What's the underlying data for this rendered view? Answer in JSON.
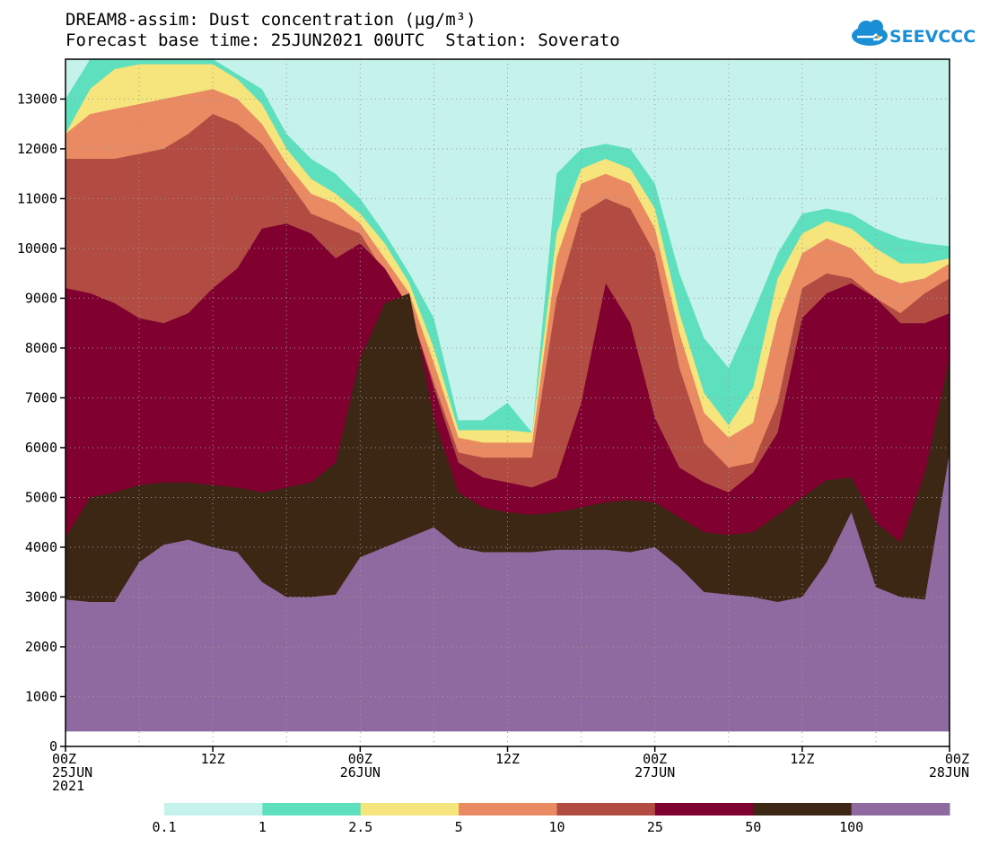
{
  "header": {
    "title": "DREAM8-assim: Dust concentration (µg/m³)",
    "subtitle": "Forecast base time: 25JUN2021 00UTC  Station: Soverato",
    "logo_text": "SEEVCCC"
  },
  "chart_data": {
    "type": "area",
    "title": "DREAM8-assim: Dust concentration (µg/m³)",
    "subtitle": "Forecast base time: 25JUN2021 00UTC  Station: Soverato",
    "x_unit": "hours from 2021-06-25 00UTC",
    "xlim": [
      0,
      72
    ],
    "ylim": [
      0,
      13800
    ],
    "grid": true,
    "y_ticks": [
      0,
      1000,
      2000,
      3000,
      4000,
      5000,
      6000,
      7000,
      8000,
      9000,
      10000,
      11000,
      12000,
      13000
    ],
    "x_ticks": [
      {
        "x": 0,
        "lines": [
          "00Z",
          "25JUN",
          "2021"
        ]
      },
      {
        "x": 12,
        "lines": [
          "12Z"
        ]
      },
      {
        "x": 24,
        "lines": [
          "00Z",
          "26JUN"
        ]
      },
      {
        "x": 36,
        "lines": [
          "12Z"
        ]
      },
      {
        "x": 48,
        "lines": [
          "00Z",
          "27JUN"
        ]
      },
      {
        "x": 60,
        "lines": [
          "12Z"
        ]
      },
      {
        "x": 72,
        "lines": [
          "00Z",
          "28JUN"
        ]
      }
    ],
    "ground_level": 300,
    "legend": {
      "placement": "bottom",
      "labels": [
        "0.1",
        "1",
        "2.5",
        "5",
        "10",
        "25",
        "50",
        "100"
      ],
      "colors": [
        "#c6f2ec",
        "#5ee0be",
        "#f6e47c",
        "#e98a62",
        "#b24c42",
        "#800030",
        "#3c2614",
        "#8e6aa0"
      ]
    },
    "series": [
      {
        "name": "0.1",
        "color": "#c6f2ec",
        "x": [
          0,
          2,
          4,
          6,
          8,
          10,
          12,
          14,
          16,
          18,
          20,
          22,
          24,
          26,
          28,
          30,
          32,
          34,
          36,
          38,
          40,
          42,
          44,
          46,
          48,
          50,
          52,
          54,
          56,
          58,
          60,
          62,
          64,
          66,
          68,
          70,
          72
        ],
        "top": [
          13800,
          13800,
          13800,
          13800,
          13800,
          13800,
          13800,
          13800,
          13800,
          13800,
          13800,
          13800,
          13800,
          13800,
          13800,
          13800,
          13800,
          13800,
          13800,
          13800,
          13800,
          13800,
          13800,
          13800,
          13800,
          13800,
          13800,
          13800,
          13800,
          13800,
          13800,
          13800,
          13800,
          13800,
          13800,
          13800,
          13800
        ]
      },
      {
        "name": "1",
        "color": "#5ee0be",
        "x": [
          0,
          2,
          4,
          6,
          8,
          10,
          12,
          14,
          16,
          18,
          20,
          22,
          24,
          26,
          28,
          30,
          32,
          34,
          36,
          38,
          40,
          42,
          44,
          46,
          48,
          50,
          52,
          54,
          56,
          58,
          60,
          62,
          64,
          66,
          68,
          70,
          72
        ],
        "top": [
          13000,
          13800,
          13800,
          13800,
          13800,
          13800,
          13800,
          13500,
          13200,
          12300,
          11800,
          11500,
          11000,
          10300,
          9500,
          8600,
          6550,
          6550,
          6900,
          6300,
          11500,
          12000,
          12100,
          12000,
          11300,
          9500,
          8200,
          7600,
          8700,
          9900,
          10700,
          10800,
          10700,
          10400,
          10200,
          10100,
          10050
        ]
      },
      {
        "name": "2.5",
        "color": "#f6e47c",
        "x": [
          0,
          2,
          4,
          6,
          8,
          10,
          12,
          14,
          16,
          18,
          20,
          22,
          24,
          26,
          28,
          30,
          32,
          34,
          36,
          38,
          40,
          42,
          44,
          46,
          48,
          50,
          52,
          54,
          56,
          58,
          60,
          62,
          64,
          66,
          68,
          70,
          72
        ],
        "top": [
          12300,
          13200,
          13600,
          13700,
          13700,
          13700,
          13700,
          13400,
          12900,
          12000,
          11400,
          11100,
          10700,
          10100,
          9300,
          8000,
          6350,
          6350,
          6350,
          6300,
          10300,
          11600,
          11800,
          11600,
          10800,
          8700,
          7100,
          6450,
          7200,
          9400,
          10300,
          10550,
          10400,
          10000,
          9700,
          9700,
          9800
        ]
      },
      {
        "name": "5",
        "color": "#e98a62",
        "x": [
          0,
          2,
          4,
          6,
          8,
          10,
          12,
          14,
          16,
          18,
          20,
          22,
          24,
          26,
          28,
          30,
          32,
          34,
          36,
          38,
          40,
          42,
          44,
          46,
          48,
          50,
          52,
          54,
          56,
          58,
          60,
          62,
          64,
          66,
          68,
          70,
          72
        ],
        "top": [
          12300,
          12700,
          12800,
          12900,
          13000,
          13100,
          13200,
          13000,
          12500,
          11700,
          11100,
          10900,
          10500,
          9800,
          9100,
          7700,
          6200,
          6100,
          6100,
          6100,
          9800,
          11300,
          11500,
          11300,
          10400,
          8300,
          6700,
          6200,
          6500,
          8600,
          9900,
          10200,
          10000,
          9500,
          9300,
          9400,
          9700
        ]
      },
      {
        "name": "10",
        "color": "#b24c42",
        "x": [
          0,
          2,
          4,
          6,
          8,
          10,
          12,
          14,
          16,
          18,
          20,
          22,
          24,
          26,
          28,
          30,
          32,
          34,
          36,
          38,
          40,
          42,
          44,
          46,
          48,
          50,
          52,
          54,
          56,
          58,
          60,
          62,
          64,
          66,
          68,
          70,
          72
        ],
        "top": [
          11800,
          11800,
          11800,
          11900,
          12000,
          12300,
          12700,
          12500,
          12100,
          11400,
          10700,
          10500,
          10300,
          9500,
          8800,
          7300,
          5900,
          5800,
          5800,
          5800,
          9000,
          10700,
          11000,
          10800,
          9900,
          7600,
          6100,
          5600,
          5700,
          6900,
          9200,
          9500,
          9400,
          9000,
          8700,
          9100,
          9400
        ]
      },
      {
        "name": "25",
        "color": "#800030",
        "x": [
          0,
          2,
          4,
          6,
          8,
          10,
          12,
          14,
          16,
          18,
          20,
          22,
          24,
          26,
          28,
          30,
          32,
          34,
          36,
          38,
          40,
          42,
          44,
          46,
          48,
          50,
          52,
          54,
          56,
          58,
          60,
          62,
          64,
          66,
          68,
          70,
          72
        ],
        "top": [
          9200,
          9100,
          8900,
          8600,
          8500,
          8700,
          9200,
          9600,
          10400,
          10500,
          10300,
          9800,
          10100,
          9600,
          8800,
          7200,
          5700,
          5400,
          5300,
          5200,
          5400,
          6900,
          9300,
          8500,
          6600,
          5600,
          5300,
          5100,
          5500,
          6300,
          8600,
          9100,
          9300,
          9000,
          8500,
          8500,
          8700
        ]
      },
      {
        "name": "50",
        "color": "#3c2614",
        "x": [
          0,
          2,
          4,
          6,
          8,
          10,
          12,
          14,
          16,
          18,
          20,
          22,
          24,
          26,
          28,
          30,
          32,
          34,
          36,
          38,
          40,
          42,
          44,
          46,
          48,
          50,
          52,
          54,
          56,
          58,
          60,
          62,
          64,
          66,
          68,
          70,
          72
        ],
        "top": [
          4200,
          5000,
          5100,
          5250,
          5300,
          5300,
          5250,
          5200,
          5100,
          5200,
          5300,
          5700,
          7800,
          8900,
          9100,
          6600,
          5100,
          4800,
          4700,
          4650,
          4700,
          4800,
          4900,
          4950,
          4900,
          4600,
          4300,
          4250,
          4300,
          4650,
          5000,
          5350,
          5400,
          4500,
          4100,
          5500,
          7800
        ]
      },
      {
        "name": "100",
        "color": "#8e6aa0",
        "x": [
          0,
          2,
          4,
          6,
          8,
          10,
          12,
          14,
          16,
          18,
          20,
          22,
          24,
          26,
          28,
          30,
          32,
          34,
          36,
          38,
          40,
          42,
          44,
          46,
          48,
          50,
          52,
          54,
          56,
          58,
          60,
          62,
          64,
          66,
          68,
          70,
          72
        ],
        "top": [
          2950,
          2900,
          2900,
          3700,
          4050,
          4150,
          4000,
          3900,
          3300,
          3000,
          3000,
          3050,
          3800,
          4000,
          4200,
          4400,
          4000,
          3900,
          3900,
          3900,
          3950,
          3950,
          3950,
          3900,
          4000,
          3600,
          3100,
          3050,
          3000,
          2900,
          3000,
          3700,
          4700,
          3200,
          3000,
          2950,
          5900
        ]
      }
    ]
  }
}
